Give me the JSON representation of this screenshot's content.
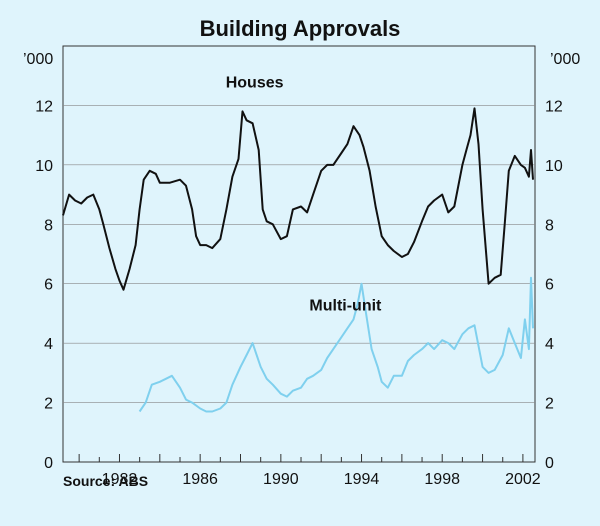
{
  "chart_data": {
    "type": "line",
    "title": "Building Approvals",
    "unit_left": "’000",
    "unit_right": "’000",
    "source": "Source: ABS",
    "xlim": [
      1979.2,
      2002.6
    ],
    "ylim": [
      0,
      14
    ],
    "y_ticks": [
      0,
      2,
      4,
      6,
      8,
      10,
      12
    ],
    "x_tick_labels": [
      "1982",
      "1986",
      "1990",
      "1994",
      "1998",
      "2002"
    ],
    "x_tick_values": [
      1982,
      1986,
      1990,
      1994,
      1998,
      2002
    ],
    "grid": "horizontal",
    "series": [
      {
        "name": "Houses",
        "color": "#111111",
        "label_year": 1988.7,
        "label_value": 12.6,
        "x": [
          1979.2,
          1979.5,
          1979.8,
          1980.1,
          1980.4,
          1980.7,
          1981.0,
          1981.2,
          1981.5,
          1981.8,
          1982.0,
          1982.2,
          1982.5,
          1982.8,
          1983.0,
          1983.2,
          1983.5,
          1983.8,
          1984.0,
          1984.5,
          1985.0,
          1985.3,
          1985.6,
          1985.8,
          1986.0,
          1986.3,
          1986.6,
          1987.0,
          1987.3,
          1987.6,
          1987.9,
          1988.1,
          1988.3,
          1988.6,
          1988.9,
          1989.1,
          1989.3,
          1989.6,
          1990.0,
          1990.3,
          1990.6,
          1991.0,
          1991.3,
          1991.6,
          1992.0,
          1992.3,
          1992.6,
          1993.0,
          1993.3,
          1993.6,
          1993.9,
          1994.1,
          1994.4,
          1994.7,
          1995.0,
          1995.3,
          1995.6,
          1996.0,
          1996.3,
          1996.6,
          1997.0,
          1997.3,
          1997.6,
          1998.0,
          1998.3,
          1998.6,
          1999.0,
          1999.2,
          1999.4,
          1999.6,
          1999.8,
          2000.0,
          2000.3,
          2000.6,
          2000.9,
          2001.1,
          2001.3,
          2001.6,
          2001.9,
          2002.1,
          2002.3,
          2002.4,
          2002.5
        ],
        "values": [
          8.3,
          9.0,
          8.8,
          8.7,
          8.9,
          9.0,
          8.5,
          8.0,
          7.2,
          6.5,
          6.1,
          5.8,
          6.5,
          7.3,
          8.5,
          9.5,
          9.8,
          9.7,
          9.4,
          9.4,
          9.5,
          9.3,
          8.5,
          7.6,
          7.3,
          7.3,
          7.2,
          7.5,
          8.5,
          9.6,
          10.2,
          11.8,
          11.5,
          11.4,
          10.5,
          8.5,
          8.1,
          8.0,
          7.5,
          7.6,
          8.5,
          8.6,
          8.4,
          9.0,
          9.8,
          10.0,
          10.0,
          10.4,
          10.7,
          11.3,
          11.0,
          10.6,
          9.8,
          8.6,
          7.6,
          7.3,
          7.1,
          6.9,
          7.0,
          7.4,
          8.1,
          8.6,
          8.8,
          9.0,
          8.4,
          8.6,
          10.0,
          10.5,
          11.0,
          11.9,
          10.7,
          8.5,
          6.0,
          6.2,
          6.3,
          8.0,
          9.8,
          10.3,
          10.0,
          9.9,
          9.6,
          10.5,
          9.5
        ]
      },
      {
        "name": "Multi-unit",
        "color": "#7fd0ee",
        "label_year": 1993.2,
        "label_value": 5.1,
        "x": [
          1983.0,
          1983.3,
          1983.6,
          1984.0,
          1984.3,
          1984.6,
          1985.0,
          1985.3,
          1985.6,
          1986.0,
          1986.3,
          1986.6,
          1987.0,
          1987.3,
          1987.6,
          1988.0,
          1988.3,
          1988.6,
          1989.0,
          1989.3,
          1989.6,
          1990.0,
          1990.3,
          1990.6,
          1991.0,
          1991.3,
          1991.6,
          1992.0,
          1992.3,
          1992.6,
          1993.0,
          1993.3,
          1993.6,
          1993.8,
          1994.0,
          1994.2,
          1994.5,
          1994.8,
          1995.0,
          1995.3,
          1995.6,
          1996.0,
          1996.3,
          1996.6,
          1997.0,
          1997.3,
          1997.6,
          1998.0,
          1998.3,
          1998.6,
          1999.0,
          1999.3,
          1999.6,
          2000.0,
          2000.3,
          2000.6,
          2001.0,
          2001.3,
          2001.6,
          2001.9,
          2002.1,
          2002.3,
          2002.4,
          2002.5
        ],
        "values": [
          1.7,
          2.0,
          2.6,
          2.7,
          2.8,
          2.9,
          2.5,
          2.1,
          2.0,
          1.8,
          1.7,
          1.7,
          1.8,
          2.0,
          2.6,
          3.2,
          3.6,
          4.0,
          3.2,
          2.8,
          2.6,
          2.3,
          2.2,
          2.4,
          2.5,
          2.8,
          2.9,
          3.1,
          3.5,
          3.8,
          4.2,
          4.5,
          4.8,
          5.3,
          6.0,
          5.1,
          3.8,
          3.2,
          2.7,
          2.5,
          2.9,
          2.9,
          3.4,
          3.6,
          3.8,
          4.0,
          3.8,
          4.1,
          4.0,
          3.8,
          4.3,
          4.5,
          4.6,
          3.2,
          3.0,
          3.1,
          3.6,
          4.5,
          4.0,
          3.5,
          4.8,
          3.8,
          6.2,
          4.5
        ]
      }
    ]
  }
}
